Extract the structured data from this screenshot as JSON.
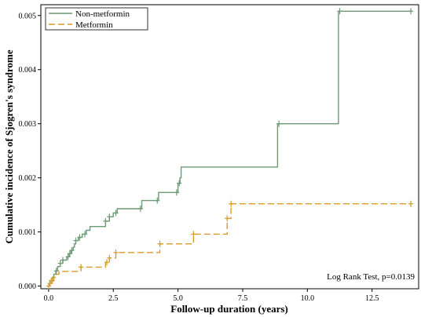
{
  "chart_data": {
    "type": "line",
    "subtype": "step",
    "xlabel": "Follow-up duration (years)",
    "ylabel": "Cumulative incidence of Sjogren's syndrome",
    "xlim": [
      -0.3,
      14.3
    ],
    "ylim": [
      -5e-05,
      0.0052
    ],
    "x_ticks": [
      0.0,
      2.5,
      5.0,
      7.5,
      10.0,
      12.5
    ],
    "x_tick_labels": [
      "0.0",
      "2.5",
      "5.0",
      "7.5",
      "10.0",
      "12.5"
    ],
    "y_ticks": [
      0.0,
      0.001,
      0.002,
      0.003,
      0.004,
      0.005
    ],
    "y_tick_labels": [
      "0.000",
      "0.001",
      "0.002",
      "0.003",
      "0.004",
      "0.005"
    ],
    "legend_position": "top-left",
    "annotation": "Log Rank Test, p=0.0139",
    "grid": false,
    "series": [
      {
        "name": "Non-metformin",
        "color": "#6e9a74",
        "dashed": false,
        "steps": [
          [
            0.0,
            0.0
          ],
          [
            0.05,
            5e-05
          ],
          [
            0.1,
            0.0001
          ],
          [
            0.15,
            0.00016
          ],
          [
            0.2,
            0.00022
          ],
          [
            0.28,
            0.00028
          ],
          [
            0.35,
            0.00036
          ],
          [
            0.45,
            0.00042
          ],
          [
            0.55,
            0.00048
          ],
          [
            0.7,
            0.00054
          ],
          [
            0.8,
            0.0006
          ],
          [
            0.87,
            0.00066
          ],
          [
            0.95,
            0.00072
          ],
          [
            1.0,
            0.00078
          ],
          [
            1.05,
            0.00084
          ],
          [
            1.15,
            0.0009
          ],
          [
            1.3,
            0.00096
          ],
          [
            1.45,
            0.00103
          ],
          [
            1.6,
            0.0011
          ],
          [
            2.2,
            0.0012
          ],
          [
            2.35,
            0.00128
          ],
          [
            2.5,
            0.00135
          ],
          [
            2.65,
            0.00143
          ],
          [
            3.6,
            0.00158
          ],
          [
            4.25,
            0.00173
          ],
          [
            5.0,
            0.0019
          ],
          [
            5.08,
            0.002
          ],
          [
            5.12,
            0.0022
          ],
          [
            8.85,
            0.003
          ],
          [
            11.2,
            0.00508
          ],
          [
            14.0,
            0.00508
          ]
        ],
        "censor_x": [
          0.3,
          0.45,
          0.55,
          0.75,
          0.82,
          0.9,
          1.05,
          1.2,
          1.4,
          2.2,
          2.35,
          2.6,
          3.55,
          4.2,
          4.95,
          5.05,
          8.9,
          11.25,
          14.0
        ]
      },
      {
        "name": "Metformin",
        "color": "#d99a26",
        "dashed": true,
        "steps": [
          [
            0.0,
            0.0
          ],
          [
            0.05,
            5e-05
          ],
          [
            0.1,
            0.0001
          ],
          [
            0.2,
            0.00016
          ],
          [
            0.3,
            0.00022
          ],
          [
            0.4,
            0.00027
          ],
          [
            1.25,
            0.00035
          ],
          [
            2.2,
            0.00044
          ],
          [
            2.35,
            0.00052
          ],
          [
            2.6,
            0.00062
          ],
          [
            4.3,
            0.00078
          ],
          [
            5.6,
            0.00096
          ],
          [
            6.9,
            0.00125
          ],
          [
            7.05,
            0.00152
          ],
          [
            14.0,
            0.00152
          ]
        ],
        "censor_x": [
          0.0,
          0.05,
          0.1,
          0.15,
          1.25,
          2.25,
          2.35,
          2.6,
          4.3,
          5.6,
          6.9,
          7.05,
          14.0
        ]
      }
    ]
  }
}
